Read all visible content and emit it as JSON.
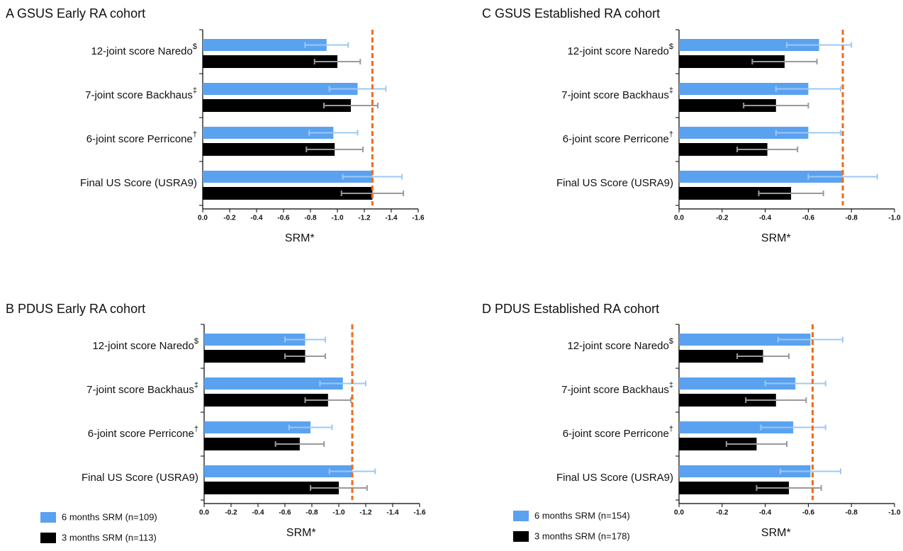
{
  "chart_data": [
    {
      "type": "bar",
      "orientation": "horizontal",
      "title": "A GSUS Early RA cohort",
      "categories": [
        "12-joint score Naredo$",
        "7-joint score Backhaus‡",
        "6-joint score Perricone†",
        "Final US Score (USRA9)"
      ],
      "series": [
        {
          "color": "#5aa2f0",
          "error_color": "#9ec8f5",
          "values": [
            -0.92,
            -1.15,
            -0.97,
            -1.26
          ],
          "errors": [
            0.16,
            0.21,
            0.18,
            0.22
          ]
        },
        {
          "color": "#000000",
          "error_color": "#9a9a9a",
          "values": [
            -1.0,
            -1.1,
            -0.98,
            -1.26
          ],
          "errors": [
            0.17,
            0.2,
            0.21,
            0.23
          ]
        }
      ],
      "xlabel": "SRM*",
      "xlim": [
        0,
        -1.6
      ],
      "xticks": [
        {
          "value": 0,
          "label": "0.0"
        },
        -0.2,
        -0.4,
        -0.6,
        -0.8,
        {
          "value": -1,
          "label": "-1.0"
        },
        -1.2,
        -1.4,
        -1.6
      ],
      "reference_line": -1.26,
      "reference_color": "#f26b1d"
    },
    {
      "type": "bar",
      "orientation": "horizontal",
      "title": "B PDUS Early RA cohort",
      "categories": [
        "12-joint score Naredo$",
        "7-joint score Backhaus‡",
        "6-joint score Perricone†",
        "Final US Score (USRA9)"
      ],
      "series": [
        {
          "name": "6 months SRM (n=109)",
          "color": "#5aa2f0",
          "error_color": "#9ec8f5",
          "values": [
            -0.75,
            -1.03,
            -0.79,
            -1.1
          ],
          "errors": [
            0.15,
            0.17,
            0.16,
            0.17
          ]
        },
        {
          "name": "3 months SRM (n=113)",
          "color": "#000000",
          "error_color": "#9a9a9a",
          "values": [
            -0.75,
            -0.92,
            -0.71,
            -1.0
          ],
          "errors": [
            0.15,
            0.17,
            0.18,
            0.21
          ]
        }
      ],
      "xlabel": "SRM*",
      "xlim": [
        0,
        -1.6
      ],
      "xticks": [
        {
          "value": 0,
          "label": "0.0"
        },
        -0.2,
        -0.4,
        -0.6,
        -0.8,
        {
          "value": -1,
          "label": "-1.0"
        },
        -1.2,
        -1.4,
        -1.6
      ],
      "reference_line": -1.1,
      "reference_color": "#f26b1d",
      "legend": "bottom-left"
    },
    {
      "type": "bar",
      "orientation": "horizontal",
      "title": "C GSUS Established RA cohort",
      "categories": [
        "12-joint score Naredo$",
        "7-joint score Backhaus‡",
        "6-joint score Perricone†",
        "Final US Score (USRA9)"
      ],
      "series": [
        {
          "color": "#5aa2f0",
          "error_color": "#9ec8f5",
          "values": [
            -0.65,
            -0.6,
            -0.6,
            -0.76
          ],
          "errors": [
            0.15,
            0.15,
            0.15,
            0.16
          ]
        },
        {
          "color": "#000000",
          "error_color": "#9a9a9a",
          "values": [
            -0.49,
            -0.45,
            -0.41,
            -0.52
          ],
          "errors": [
            0.15,
            0.15,
            0.14,
            0.15
          ]
        }
      ],
      "xlabel": "SRM*",
      "xlim": [
        0,
        -1.0
      ],
      "xticks": [
        {
          "value": 0,
          "label": "0.0"
        },
        -0.2,
        -0.4,
        -0.6,
        -0.8,
        {
          "value": -1,
          "label": "-1.0"
        }
      ],
      "reference_line": -0.76,
      "reference_color": "#f26b1d"
    },
    {
      "type": "bar",
      "orientation": "horizontal",
      "title": "D PDUS Established RA cohort",
      "categories": [
        "12-joint score Naredo$",
        "7-joint score Backhaus‡",
        "6-joint score Perricone†",
        "Final US Score (USRA9)"
      ],
      "series": [
        {
          "name": "6 months SRM (n=154)",
          "color": "#5aa2f0",
          "error_color": "#9ec8f5",
          "values": [
            -0.61,
            -0.54,
            -0.53,
            -0.61
          ],
          "errors": [
            0.15,
            0.14,
            0.15,
            0.14
          ]
        },
        {
          "name": "3 months SRM (n=178)",
          "color": "#000000",
          "error_color": "#9a9a9a",
          "values": [
            -0.39,
            -0.45,
            -0.36,
            -0.51
          ],
          "errors": [
            0.12,
            0.14,
            0.14,
            0.15
          ]
        }
      ],
      "xlabel": "SRM*",
      "xlim": [
        0,
        -1.0
      ],
      "xticks": [
        {
          "value": 0,
          "label": "0.0"
        },
        -0.2,
        -0.4,
        -0.6,
        -0.8,
        {
          "value": -1,
          "label": "-1.0"
        }
      ],
      "reference_line": -0.62,
      "reference_color": "#f26b1d",
      "legend": "bottom-left"
    }
  ]
}
